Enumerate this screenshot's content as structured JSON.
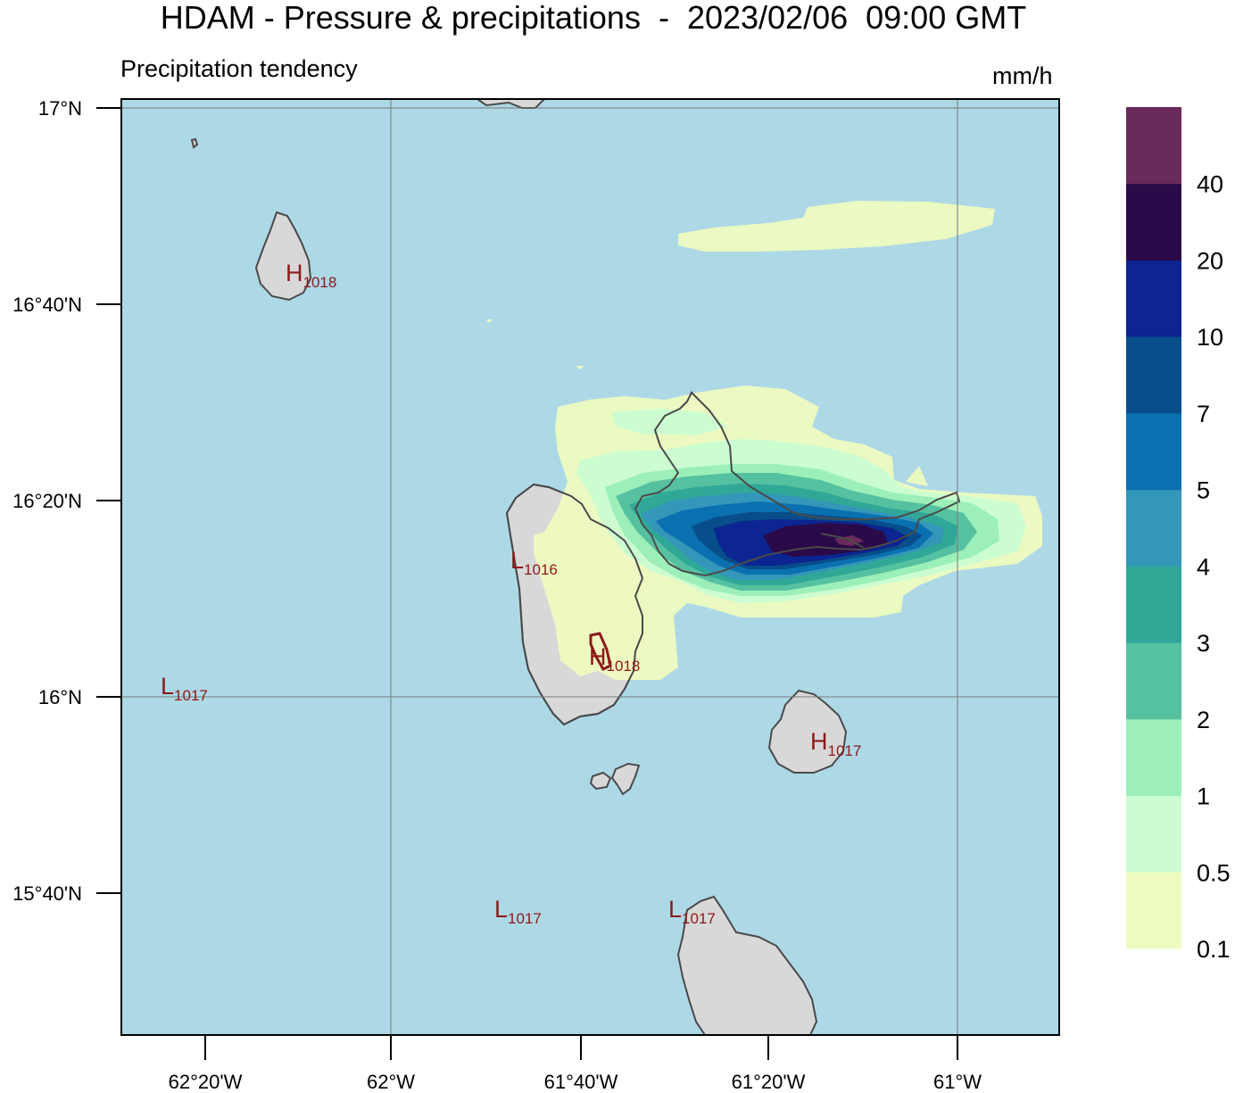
{
  "title": "HDAM - Pressure & precipitations  -  2023/02/06  09:00 GMT",
  "subtitle": "Precipitation tendency",
  "units": "mm/h",
  "lat_ticks": [
    "17°N",
    "16°40'N",
    "16°20'N",
    "16°N",
    "15°40'N"
  ],
  "lon_ticks": [
    "62°20'W",
    "62°W",
    "61°40'W",
    "61°20'W",
    "61°W"
  ],
  "colorbar": {
    "labels": [
      "0.1",
      "0.5",
      "1",
      "2",
      "3",
      "4",
      "5",
      "7",
      "10",
      "20",
      "40"
    ],
    "colors": [
      "#eefbc0",
      "#ccfdd0",
      "#9cefb8",
      "#56c1a0",
      "#30a898",
      "#3496b8",
      "#0a70b0",
      "#074e8a",
      "#0c2590",
      "#2a0a48",
      "#6a2a5a"
    ]
  },
  "pressure_marks": [
    {
      "type": "H",
      "value": "1018"
    },
    {
      "type": "L",
      "value": "1016"
    },
    {
      "type": "H",
      "value": "1018"
    },
    {
      "type": "L",
      "value": "1017"
    },
    {
      "type": "H",
      "value": "1017"
    },
    {
      "type": "L",
      "value": "1017"
    },
    {
      "type": "L",
      "value": "1017"
    }
  ],
  "colors": {
    "sea": "#add8e6",
    "land": "#d8d8d8",
    "coast": "#4a4a4a",
    "grid": "#7a7a7a",
    "pressure_label": "#8b1a1a"
  }
}
